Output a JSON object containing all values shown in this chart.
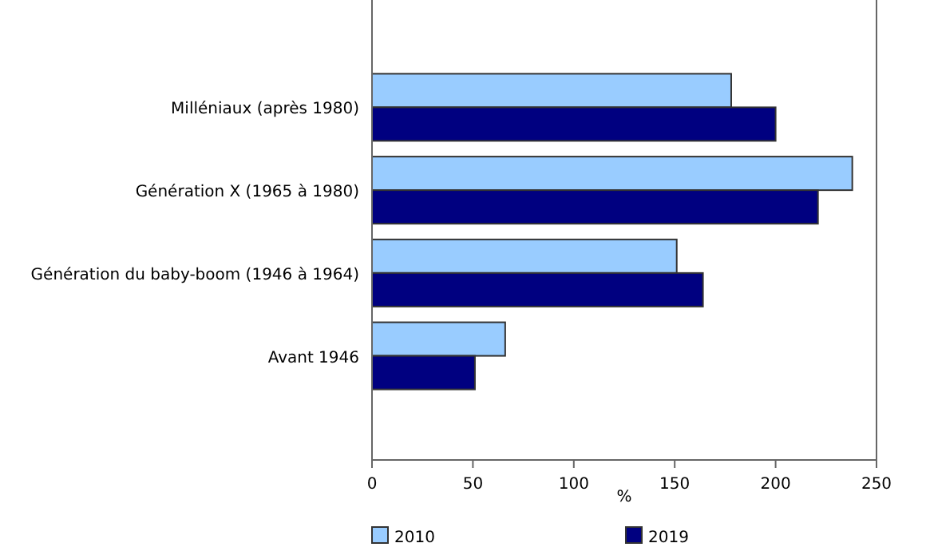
{
  "chart_data": {
    "type": "bar",
    "orientation": "horizontal",
    "xlabel": "%",
    "categories": [
      "Milléniaux (après 1980)",
      "Génération X (1965 à 1980)",
      "Génération du baby-boom (1946 à 1964)",
      "Avant 1946"
    ],
    "series": [
      {
        "name": "2010",
        "color": "#99ccff",
        "values": [
          178,
          238,
          151,
          66
        ]
      },
      {
        "name": "2019",
        "color": "#000080",
        "values": [
          200,
          221,
          164,
          51
        ]
      }
    ],
    "xlim": [
      0,
      250
    ],
    "xticks": [
      0,
      50,
      100,
      150,
      200,
      250
    ],
    "grid": false,
    "legend": "bottom"
  }
}
